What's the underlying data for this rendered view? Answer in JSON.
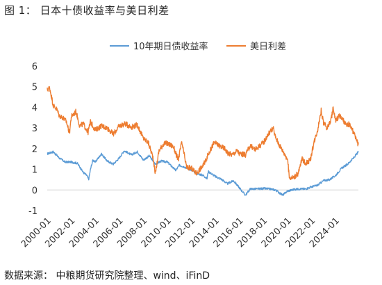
{
  "figure": {
    "title": "图 1：  日本十债收益率与美日利差",
    "source": "数据来源：  中粮期货研究院整理、wind、iFinD"
  },
  "chart_data": {
    "type": "line",
    "title": "",
    "xlabel": "",
    "ylabel": "",
    "ylim": [
      -1,
      6
    ],
    "yticks": [
      "-1",
      "0",
      "1",
      "2",
      "3",
      "4",
      "5",
      "6"
    ],
    "xlim": [
      2000.0,
      2025.9
    ],
    "xtick_labels": [
      "2000-01",
      "2002-01",
      "2004-01",
      "2006-01",
      "2008-01",
      "2010-01",
      "2012-01",
      "2014-01",
      "2016-01",
      "2018-01",
      "2020-01",
      "2022-01",
      "2024-01"
    ],
    "legend": "top",
    "grid": false,
    "series": [
      {
        "name": "10年期日债收益率",
        "color": "#5B9BD5",
        "points": [
          [
            2000.0,
            1.75
          ],
          [
            2000.5,
            1.85
          ],
          [
            2001.0,
            1.55
          ],
          [
            2001.5,
            1.35
          ],
          [
            2002.0,
            1.35
          ],
          [
            2002.5,
            1.3
          ],
          [
            2003.0,
            0.85
          ],
          [
            2003.3,
            0.7
          ],
          [
            2003.45,
            0.5
          ],
          [
            2003.6,
            1.0
          ],
          [
            2003.8,
            1.45
          ],
          [
            2004.0,
            1.35
          ],
          [
            2004.5,
            1.75
          ],
          [
            2005.0,
            1.4
          ],
          [
            2005.5,
            1.25
          ],
          [
            2006.0,
            1.55
          ],
          [
            2006.4,
            1.9
          ],
          [
            2007.0,
            1.7
          ],
          [
            2007.5,
            1.85
          ],
          [
            2008.0,
            1.45
          ],
          [
            2008.5,
            1.65
          ],
          [
            2009.0,
            1.25
          ],
          [
            2009.5,
            1.4
          ],
          [
            2010.0,
            1.35
          ],
          [
            2010.7,
            0.95
          ],
          [
            2011.0,
            1.2
          ],
          [
            2011.5,
            1.1
          ],
          [
            2012.0,
            0.95
          ],
          [
            2012.5,
            0.8
          ],
          [
            2013.0,
            0.7
          ],
          [
            2013.3,
            0.55
          ],
          [
            2013.4,
            0.9
          ],
          [
            2014.0,
            0.65
          ],
          [
            2014.5,
            0.52
          ],
          [
            2015.0,
            0.3
          ],
          [
            2015.5,
            0.45
          ],
          [
            2016.0,
            0.1
          ],
          [
            2016.5,
            -0.25
          ],
          [
            2016.9,
            0.05
          ],
          [
            2017.5,
            0.05
          ],
          [
            2018.0,
            0.07
          ],
          [
            2018.5,
            0.05
          ],
          [
            2019.0,
            0.0
          ],
          [
            2019.6,
            -0.25
          ],
          [
            2020.0,
            -0.05
          ],
          [
            2020.5,
            0.02
          ],
          [
            2021.0,
            0.05
          ],
          [
            2021.5,
            0.05
          ],
          [
            2022.0,
            0.15
          ],
          [
            2022.5,
            0.23
          ],
          [
            2023.0,
            0.45
          ],
          [
            2023.5,
            0.5
          ],
          [
            2024.0,
            0.7
          ],
          [
            2024.5,
            1.05
          ],
          [
            2025.0,
            1.25
          ],
          [
            2025.5,
            1.55
          ],
          [
            2025.9,
            1.85
          ]
        ]
      },
      {
        "name": "美日利差",
        "color": "#ED7D31",
        "points": [
          [
            2000.0,
            4.85
          ],
          [
            2000.2,
            4.95
          ],
          [
            2000.5,
            4.1
          ],
          [
            2000.8,
            3.9
          ],
          [
            2001.0,
            3.6
          ],
          [
            2001.3,
            3.5
          ],
          [
            2001.6,
            3.3
          ],
          [
            2001.85,
            2.75
          ],
          [
            2002.0,
            3.55
          ],
          [
            2002.4,
            3.8
          ],
          [
            2002.7,
            3.1
          ],
          [
            2003.0,
            3.2
          ],
          [
            2003.4,
            2.8
          ],
          [
            2003.6,
            3.3
          ],
          [
            2004.0,
            2.9
          ],
          [
            2004.5,
            3.1
          ],
          [
            2005.0,
            3.0
          ],
          [
            2005.5,
            2.7
          ],
          [
            2006.0,
            3.1
          ],
          [
            2006.5,
            3.2
          ],
          [
            2007.0,
            3.05
          ],
          [
            2007.5,
            3.15
          ],
          [
            2008.0,
            2.5
          ],
          [
            2008.4,
            2.3
          ],
          [
            2008.8,
            1.6
          ],
          [
            2009.0,
            0.8
          ],
          [
            2009.3,
            1.9
          ],
          [
            2009.7,
            2.25
          ],
          [
            2010.0,
            2.25
          ],
          [
            2010.5,
            2.1
          ],
          [
            2010.9,
            1.45
          ],
          [
            2011.2,
            2.3
          ],
          [
            2011.6,
            1.1
          ],
          [
            2012.0,
            1.05
          ],
          [
            2012.4,
            0.8
          ],
          [
            2012.7,
            1.0
          ],
          [
            2013.0,
            1.2
          ],
          [
            2013.5,
            1.85
          ],
          [
            2013.9,
            2.3
          ],
          [
            2014.3,
            2.15
          ],
          [
            2014.8,
            2.0
          ],
          [
            2015.0,
            1.8
          ],
          [
            2015.4,
            1.7
          ],
          [
            2015.8,
            1.9
          ],
          [
            2016.0,
            1.75
          ],
          [
            2016.5,
            1.7
          ],
          [
            2016.9,
            2.15
          ],
          [
            2017.3,
            1.95
          ],
          [
            2017.8,
            2.2
          ],
          [
            2018.0,
            2.3
          ],
          [
            2018.5,
            2.8
          ],
          [
            2018.8,
            3.0
          ],
          [
            2019.0,
            2.55
          ],
          [
            2019.4,
            2.1
          ],
          [
            2019.8,
            1.7
          ],
          [
            2020.0,
            1.5
          ],
          [
            2020.15,
            0.6
          ],
          [
            2020.5,
            0.6
          ],
          [
            2020.9,
            0.8
          ],
          [
            2021.2,
            1.5
          ],
          [
            2021.5,
            1.3
          ],
          [
            2021.9,
            1.45
          ],
          [
            2022.2,
            2.3
          ],
          [
            2022.5,
            2.9
          ],
          [
            2022.8,
            3.85
          ],
          [
            2023.0,
            3.25
          ],
          [
            2023.3,
            3.0
          ],
          [
            2023.6,
            3.35
          ],
          [
            2023.8,
            3.95
          ],
          [
            2024.0,
            3.35
          ],
          [
            2024.3,
            3.6
          ],
          [
            2024.6,
            3.4
          ],
          [
            2024.9,
            3.1
          ],
          [
            2025.1,
            3.2
          ],
          [
            2025.4,
            2.9
          ],
          [
            2025.7,
            2.5
          ],
          [
            2025.9,
            2.2
          ]
        ]
      }
    ]
  }
}
